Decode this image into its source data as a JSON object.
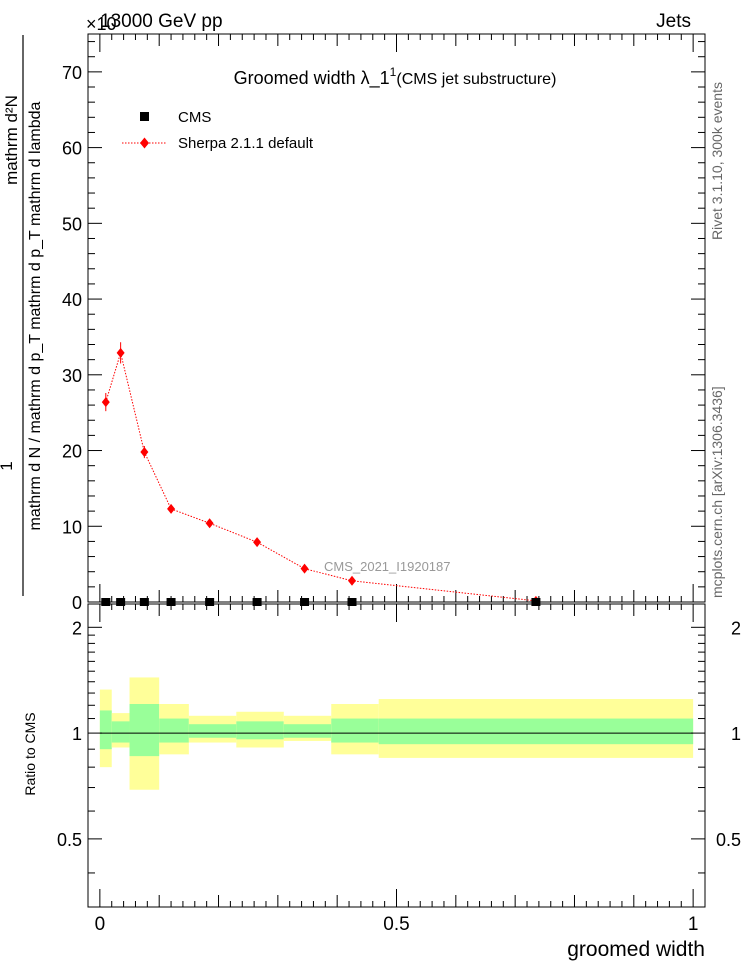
{
  "header": {
    "left": "13000 GeV pp",
    "right": "Jets",
    "exponent": "×10"
  },
  "side_labels": {
    "rivet": "Rivet 3.1.10,  300k events",
    "mcplots": "mcplots.cern.ch [arXiv:1306.3436]"
  },
  "chart_data": [
    {
      "type": "scatter",
      "title_main": "Groomed width  λ_1",
      "title_sup": "1",
      "title_paren": "(CMS jet substructure)",
      "ylabel_numerator": "mathrm d²N",
      "ylabel_denominator": "mathrm d N / mathrm d p_T mathrm d p_T mathrm d lambda",
      "ylabel_one": "1",
      "xlim": [
        -0.02,
        1.02
      ],
      "ylim": [
        0,
        75
      ],
      "yticks_major": [
        0,
        10,
        20,
        30,
        40,
        50,
        60,
        70
      ],
      "watermark": "CMS_2021_I1920187",
      "legend": {
        "position": "top-left",
        "entries": [
          "CMS",
          "Sherpa 2.1.1 default"
        ]
      },
      "series": [
        {
          "name": "CMS",
          "color": "#000000",
          "marker": "square",
          "x": [
            0.01,
            0.035,
            0.075,
            0.12,
            0.185,
            0.265,
            0.345,
            0.425,
            0.735
          ],
          "y": [
            0,
            0,
            0,
            0,
            0,
            0,
            0,
            0,
            0
          ]
        },
        {
          "name": "Sherpa 2.1.1 default",
          "color": "#ff0000",
          "marker": "diamond",
          "x": [
            0.01,
            0.035,
            0.075,
            0.12,
            0.185,
            0.265,
            0.345,
            0.425,
            0.735
          ],
          "y": [
            26.4,
            32.9,
            19.8,
            12.3,
            10.4,
            7.9,
            4.4,
            2.8,
            0.15
          ],
          "yerr": [
            1.2,
            1.4,
            0.8,
            0.5,
            0.45,
            0.4,
            0.3,
            0.25,
            0.1
          ]
        }
      ]
    },
    {
      "type": "area",
      "ylabel": "Ratio to CMS",
      "xlabel": "groomed width",
      "xlim": [
        -0.02,
        1.02
      ],
      "ylim": [
        0.32,
        2.33
      ],
      "yscale": "log",
      "yticks_labeled": [
        "0.5",
        "1",
        "2"
      ],
      "xticks_labeled": [
        "0",
        "0.5",
        "1"
      ],
      "bands": [
        {
          "x0": 0.0,
          "x1": 0.02,
          "inner": [
            0.9,
            1.16
          ],
          "outer": [
            0.8,
            1.33
          ]
        },
        {
          "x0": 0.02,
          "x1": 0.05,
          "inner": [
            0.94,
            1.08
          ],
          "outer": [
            0.91,
            1.14
          ]
        },
        {
          "x0": 0.05,
          "x1": 0.1,
          "inner": [
            0.86,
            1.21
          ],
          "outer": [
            0.69,
            1.44
          ]
        },
        {
          "x0": 0.1,
          "x1": 0.15,
          "inner": [
            0.94,
            1.1
          ],
          "outer": [
            0.87,
            1.21
          ]
        },
        {
          "x0": 0.15,
          "x1": 0.23,
          "inner": [
            0.97,
            1.06
          ],
          "outer": [
            0.94,
            1.12
          ]
        },
        {
          "x0": 0.23,
          "x1": 0.31,
          "inner": [
            0.96,
            1.08
          ],
          "outer": [
            0.91,
            1.15
          ]
        },
        {
          "x0": 0.31,
          "x1": 0.39,
          "inner": [
            0.97,
            1.06
          ],
          "outer": [
            0.95,
            1.12
          ]
        },
        {
          "x0": 0.39,
          "x1": 0.47,
          "inner": [
            0.94,
            1.1
          ],
          "outer": [
            0.87,
            1.21
          ]
        },
        {
          "x0": 0.47,
          "x1": 1.0,
          "inner": [
            0.93,
            1.1
          ],
          "outer": [
            0.85,
            1.25
          ]
        }
      ],
      "inner_color": "#99ff99",
      "outer_color": "#ffff99"
    }
  ]
}
